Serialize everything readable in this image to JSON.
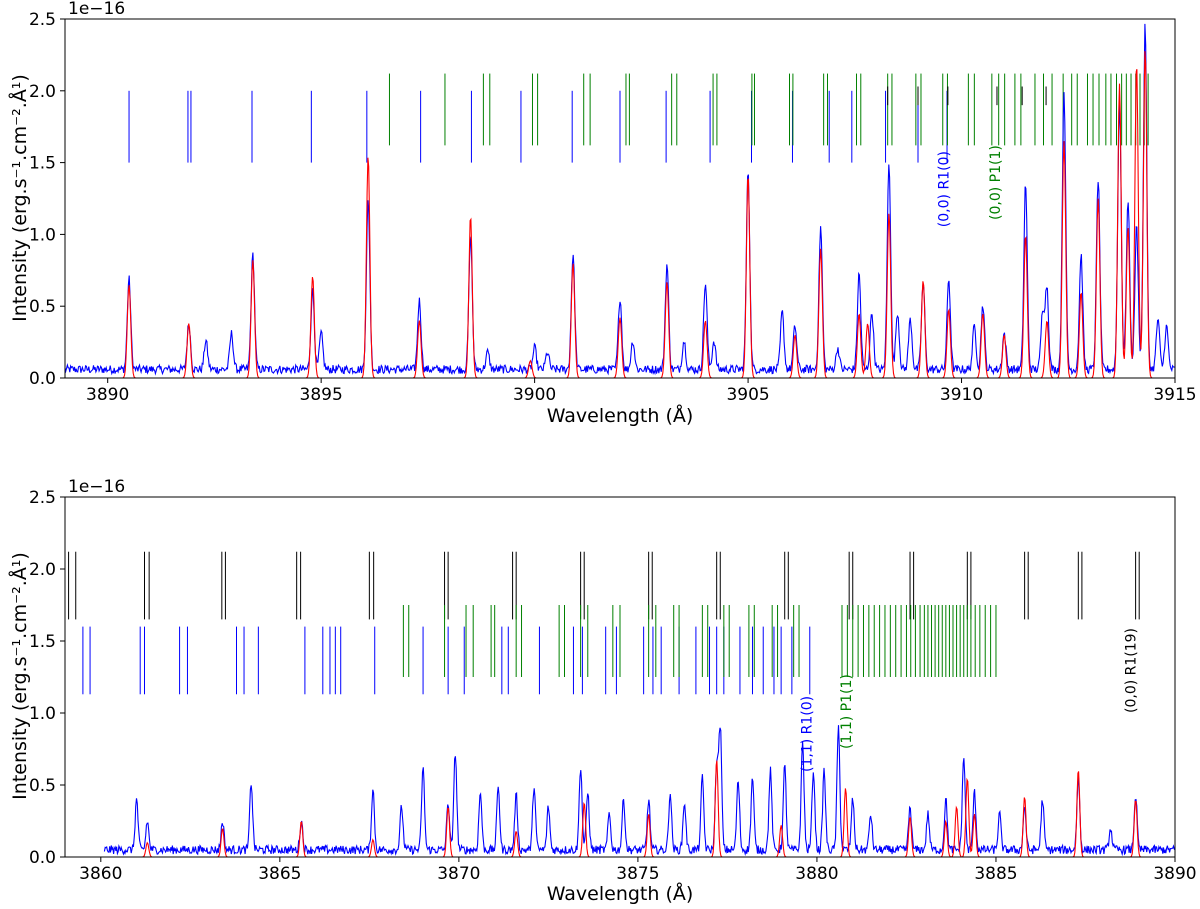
{
  "chart_data": [
    {
      "type": "line",
      "title": "",
      "xlabel": "Wavelength (Å)",
      "ylabel": "Intensity (erg.s⁻¹.cm⁻².Å¹)",
      "offset_text": "1e−16",
      "xlim": [
        3889,
        3915
      ],
      "ylim": [
        0,
        2.5
      ],
      "xticks": [
        "3890",
        "3895",
        "3900",
        "3905",
        "3910",
        "3915"
      ],
      "xtick_values": [
        3890,
        3895,
        3900,
        3905,
        3910,
        3915
      ],
      "yticks": [
        "0.0",
        "0.5",
        "1.0",
        "1.5",
        "2.0",
        "2.5"
      ],
      "ytick_values": [
        0,
        0.5,
        1.0,
        1.5,
        2.0,
        2.5
      ],
      "grid": false,
      "colors": {
        "observed": "#0000ff",
        "model": "#ff0000",
        "branch_R": "#0000ff",
        "branch_P": "#008000",
        "branch_other": "#000000"
      },
      "series": [
        {
          "color": "#0000ff",
          "role": "observed",
          "baseline": 0.06,
          "peaks": [
            [
              3890.5,
              0.63
            ],
            [
              3891.9,
              0.32
            ],
            [
              3892.3,
              0.2
            ],
            [
              3892.9,
              0.25
            ],
            [
              3893.4,
              0.8
            ],
            [
              3894.8,
              0.55
            ],
            [
              3895.0,
              0.25
            ],
            [
              3896.1,
              1.17
            ],
            [
              3897.3,
              0.48
            ],
            [
              3898.5,
              0.93
            ],
            [
              3898.9,
              0.12
            ],
            [
              3900.0,
              0.15
            ],
            [
              3900.3,
              0.12
            ],
            [
              3900.9,
              0.8
            ],
            [
              3902.0,
              0.5
            ],
            [
              3902.3,
              0.2
            ],
            [
              3903.1,
              0.73
            ],
            [
              3903.5,
              0.2
            ],
            [
              3904.0,
              0.6
            ],
            [
              3904.2,
              0.2
            ],
            [
              3905.0,
              1.4
            ],
            [
              3905.8,
              0.4
            ],
            [
              3906.1,
              0.3
            ],
            [
              3906.7,
              0.99
            ],
            [
              3907.1,
              0.15
            ],
            [
              3907.6,
              0.67
            ],
            [
              3907.9,
              0.4
            ],
            [
              3908.3,
              1.45
            ],
            [
              3908.5,
              0.4
            ],
            [
              3908.8,
              0.35
            ],
            [
              3909.1,
              0.6
            ],
            [
              3909.7,
              0.63
            ],
            [
              3910.3,
              0.3
            ],
            [
              3910.5,
              0.45
            ],
            [
              3911.0,
              0.25
            ],
            [
              3911.5,
              1.3
            ],
            [
              3911.9,
              0.4
            ],
            [
              3912.0,
              0.57
            ],
            [
              3912.4,
              1.95
            ],
            [
              3912.8,
              0.8
            ],
            [
              3913.2,
              1.33
            ],
            [
              3913.7,
              1.85
            ],
            [
              3913.9,
              1.17
            ],
            [
              3914.1,
              1.0
            ],
            [
              3914.3,
              2.4
            ],
            [
              3914.6,
              0.35
            ],
            [
              3914.8,
              0.3
            ]
          ]
        },
        {
          "color": "#ff0000",
          "role": "model",
          "baseline": 0.0,
          "peaks": [
            [
              3890.5,
              0.65
            ],
            [
              3891.9,
              0.38
            ],
            [
              3893.4,
              0.82
            ],
            [
              3894.8,
              0.71
            ],
            [
              3896.1,
              1.55
            ],
            [
              3897.3,
              0.4
            ],
            [
              3898.5,
              1.13
            ],
            [
              3899.9,
              0.12
            ],
            [
              3900.9,
              0.8
            ],
            [
              3902.0,
              0.42
            ],
            [
              3903.1,
              0.67
            ],
            [
              3904.0,
              0.4
            ],
            [
              3905.0,
              1.42
            ],
            [
              3906.1,
              0.3
            ],
            [
              3906.7,
              0.9
            ],
            [
              3907.6,
              0.45
            ],
            [
              3907.8,
              0.38
            ],
            [
              3908.3,
              1.15
            ],
            [
              3909.1,
              0.68
            ],
            [
              3909.7,
              0.48
            ],
            [
              3910.5,
              0.45
            ],
            [
              3911.0,
              0.3
            ],
            [
              3911.5,
              1.0
            ],
            [
              3912.0,
              0.4
            ],
            [
              3912.4,
              1.65
            ],
            [
              3912.8,
              0.6
            ],
            [
              3913.2,
              1.25
            ],
            [
              3913.7,
              2.05
            ],
            [
              3913.9,
              1.05
            ],
            [
              3914.1,
              2.2
            ],
            [
              3914.3,
              2.3
            ]
          ]
        }
      ],
      "line_lists": [
        {
          "branch": "R",
          "color": "#0000ff",
          "y_low": 1.5,
          "y_high": 2.0,
          "x": [
            3890.5,
            3891.88,
            3891.95,
            3893.38,
            3894.77,
            3896.07,
            3897.33,
            3898.52,
            3899.68,
            3900.88,
            3902.0,
            3903.08,
            3904.11,
            3905.08,
            3906.04,
            3906.9,
            3907.43,
            3908.22,
            3908.98,
            3909.66
          ]
        },
        {
          "branch": "P",
          "color": "#008000",
          "y_low": 1.62,
          "y_high": 2.12,
          "x": [
            3896.6,
            3897.9,
            3898.8,
            3898.95,
            3899.95,
            3900.07,
            3901.15,
            3901.3,
            3902.14,
            3902.22,
            3903.21,
            3903.33,
            3904.18,
            3904.27,
            3905.09,
            3905.15,
            3905.97,
            3906.05,
            3906.77,
            3906.86,
            3907.54,
            3907.64,
            3908.27,
            3908.37,
            3908.93,
            3909.05,
            3909.56,
            3909.67,
            3910.16,
            3910.3,
            3910.71,
            3910.87,
            3911.01,
            3911.25,
            3911.39,
            3911.72,
            3911.92,
            3912.12,
            3912.38,
            3912.58,
            3912.71,
            3912.95,
            3913.08,
            3913.22,
            3913.38,
            3913.5,
            3913.63,
            3913.75,
            3913.86,
            3913.97,
            3914.08,
            3914.18,
            3914.28,
            3914.37
          ]
        },
        {
          "branch": "other",
          "color": "#000000",
          "y_low": 1.9,
          "y_high": 2.03,
          "x": [
            3908.27,
            3908.98,
            3909.68,
            3910.83,
            3911.42,
            3911.98
          ]
        }
      ],
      "annotations": [
        {
          "text": "(0,0) R1(0)",
          "x": 3909.7,
          "y": 1.05,
          "color": "#0000ff"
        },
        {
          "text": "(0,0) P1(1)",
          "x": 3910.9,
          "y": 1.1,
          "color": "#008000"
        }
      ]
    },
    {
      "type": "line",
      "title": "",
      "xlabel": "Wavelength (Å)",
      "ylabel": "Intensity (erg.s⁻¹.cm⁻².Å¹)",
      "offset_text": "1e−16",
      "xlim": [
        3859,
        3890
      ],
      "ylim": [
        0,
        2.5
      ],
      "xticks": [
        "3860",
        "3865",
        "3870",
        "3875",
        "3880",
        "3885",
        "3890"
      ],
      "xtick_values": [
        3860,
        3865,
        3870,
        3875,
        3880,
        3885,
        3890
      ],
      "yticks": [
        "0.0",
        "0.5",
        "1.0",
        "1.5",
        "2.0",
        "2.5"
      ],
      "ytick_values": [
        0,
        0.5,
        1.0,
        1.5,
        2.0,
        2.5
      ],
      "grid": false,
      "colors": {
        "observed": "#0000ff",
        "model": "#ff0000",
        "branch_R": "#0000ff",
        "branch_P": "#008000",
        "branch_other": "#000000"
      },
      "series": [
        {
          "color": "#0000ff",
          "role": "observed",
          "baseline": 0.05,
          "x_start": 3860.1,
          "peaks": [
            [
              3861.0,
              0.35
            ],
            [
              3861.3,
              0.2
            ],
            [
              3863.4,
              0.2
            ],
            [
              3864.2,
              0.47
            ],
            [
              3865.6,
              0.2
            ],
            [
              3867.6,
              0.42
            ],
            [
              3868.4,
              0.3
            ],
            [
              3869.0,
              0.57
            ],
            [
              3869.7,
              0.33
            ],
            [
              3869.9,
              0.68
            ],
            [
              3870.6,
              0.4
            ],
            [
              3871.1,
              0.45
            ],
            [
              3871.6,
              0.38
            ],
            [
              3872.1,
              0.45
            ],
            [
              3872.5,
              0.3
            ],
            [
              3873.4,
              0.58
            ],
            [
              3873.6,
              0.4
            ],
            [
              3874.2,
              0.25
            ],
            [
              3874.6,
              0.35
            ],
            [
              3875.3,
              0.35
            ],
            [
              3875.9,
              0.4
            ],
            [
              3876.3,
              0.33
            ],
            [
              3876.8,
              0.5
            ],
            [
              3877.2,
              0.6
            ],
            [
              3877.3,
              0.85
            ],
            [
              3877.8,
              0.48
            ],
            [
              3878.2,
              0.5
            ],
            [
              3878.7,
              0.55
            ],
            [
              3879.1,
              0.58
            ],
            [
              3879.6,
              0.75
            ],
            [
              3879.9,
              0.55
            ],
            [
              3880.2,
              0.55
            ],
            [
              3880.6,
              0.85
            ],
            [
              3881.0,
              0.35
            ],
            [
              3881.5,
              0.25
            ],
            [
              3882.6,
              0.3
            ],
            [
              3883.1,
              0.25
            ],
            [
              3883.6,
              0.35
            ],
            [
              3884.1,
              0.65
            ],
            [
              3884.4,
              0.4
            ],
            [
              3885.1,
              0.25
            ],
            [
              3885.8,
              0.3
            ],
            [
              3886.3,
              0.35
            ],
            [
              3887.3,
              0.5
            ],
            [
              3888.2,
              0.15
            ],
            [
              3888.9,
              0.38
            ]
          ]
        },
        {
          "color": "#ff0000",
          "role": "model",
          "baseline": 0.0,
          "x_start": 3860.1,
          "peaks": [
            [
              3861.3,
              0.1
            ],
            [
              3863.4,
              0.2
            ],
            [
              3865.6,
              0.25
            ],
            [
              3867.6,
              0.12
            ],
            [
              3869.7,
              0.35
            ],
            [
              3871.6,
              0.18
            ],
            [
              3873.5,
              0.38
            ],
            [
              3875.3,
              0.3
            ],
            [
              3877.2,
              0.68
            ],
            [
              3879.0,
              0.22
            ],
            [
              3880.8,
              0.48
            ],
            [
              3882.6,
              0.28
            ],
            [
              3883.6,
              0.25
            ],
            [
              3883.9,
              0.35
            ],
            [
              3884.2,
              0.55
            ],
            [
              3884.4,
              0.3
            ],
            [
              3885.8,
              0.42
            ],
            [
              3887.3,
              0.61
            ],
            [
              3888.9,
              0.4
            ]
          ]
        }
      ],
      "line_lists": [
        {
          "branch": "other",
          "color": "#000000",
          "y_low": 1.65,
          "y_high": 2.12,
          "x": [
            3859.1,
            3859.3,
            3861.22,
            3861.35,
            3863.38,
            3863.48,
            3865.47,
            3865.58,
            3867.5,
            3867.62,
            3869.6,
            3869.7,
            3871.5,
            3871.6,
            3873.4,
            3873.5,
            3875.3,
            3875.4,
            3877.2,
            3877.3,
            3879.1,
            3879.2,
            3880.9,
            3881.0,
            3882.6,
            3882.7,
            3884.2,
            3884.3,
            3885.8,
            3885.9,
            3887.3,
            3887.4,
            3888.9,
            3889.0
          ]
        },
        {
          "branch": "R",
          "color": "#0000ff",
          "y_low": 1.13,
          "y_high": 1.6,
          "x": [
            3859.5,
            3859.7,
            3861.1,
            3861.22,
            3862.2,
            3862.42,
            3863.79,
            3864.0,
            3864.4,
            3865.7,
            3866.2,
            3866.4,
            3866.55,
            3866.7,
            3867.65,
            3869.0,
            3869.7,
            3870.15,
            3871.2,
            3871.38,
            3872.25,
            3873.2,
            3873.45,
            3874.1,
            3874.4,
            3875.16,
            3875.42,
            3875.65,
            3876.15,
            3876.62,
            3877.0,
            3877.2,
            3877.4,
            3877.85,
            3878.2,
            3878.5,
            3878.8,
            3879.0,
            3879.3,
            3879.8
          ]
        },
        {
          "branch": "P",
          "color": "#008000",
          "y_low": 1.25,
          "y_high": 1.75,
          "x": [
            3868.45,
            3868.6,
            3869.6,
            3870.2,
            3870.4,
            3870.9,
            3871.0,
            3871.6,
            3871.75,
            3872.8,
            3872.95,
            3873.4,
            3873.6,
            3874.3,
            3874.5,
            3875.3,
            3875.5,
            3876.0,
            3876.15,
            3876.8,
            3876.95,
            3877.4,
            3877.55,
            3878.1,
            3878.25,
            3878.75,
            3878.9,
            3879.35,
            3879.5,
            3880.7,
            3880.85,
            3881.0,
            3881.15,
            3881.3,
            3881.45,
            3881.6,
            3881.75,
            3881.9,
            3882.05,
            3882.2,
            3882.35,
            3882.5,
            3882.62,
            3882.75,
            3882.88,
            3883.0,
            3883.1,
            3883.2,
            3883.3,
            3883.4,
            3883.5,
            3883.6,
            3883.7,
            3883.8,
            3883.9,
            3884.0,
            3884.1,
            3884.2,
            3884.3,
            3884.42,
            3884.55,
            3884.7,
            3884.85,
            3885.0
          ]
        }
      ],
      "annotations": [
        {
          "text": "(1,1) R1(0)",
          "x": 3879.85,
          "y": 0.59,
          "color": "#0000ff"
        },
        {
          "text": "(1,1) P1(1)",
          "x": 3880.95,
          "y": 0.75,
          "color": "#008000"
        },
        {
          "text": "(0,0) R1(19)",
          "x": 3888.9,
          "y": 1.0,
          "color": "#000000"
        }
      ]
    }
  ]
}
